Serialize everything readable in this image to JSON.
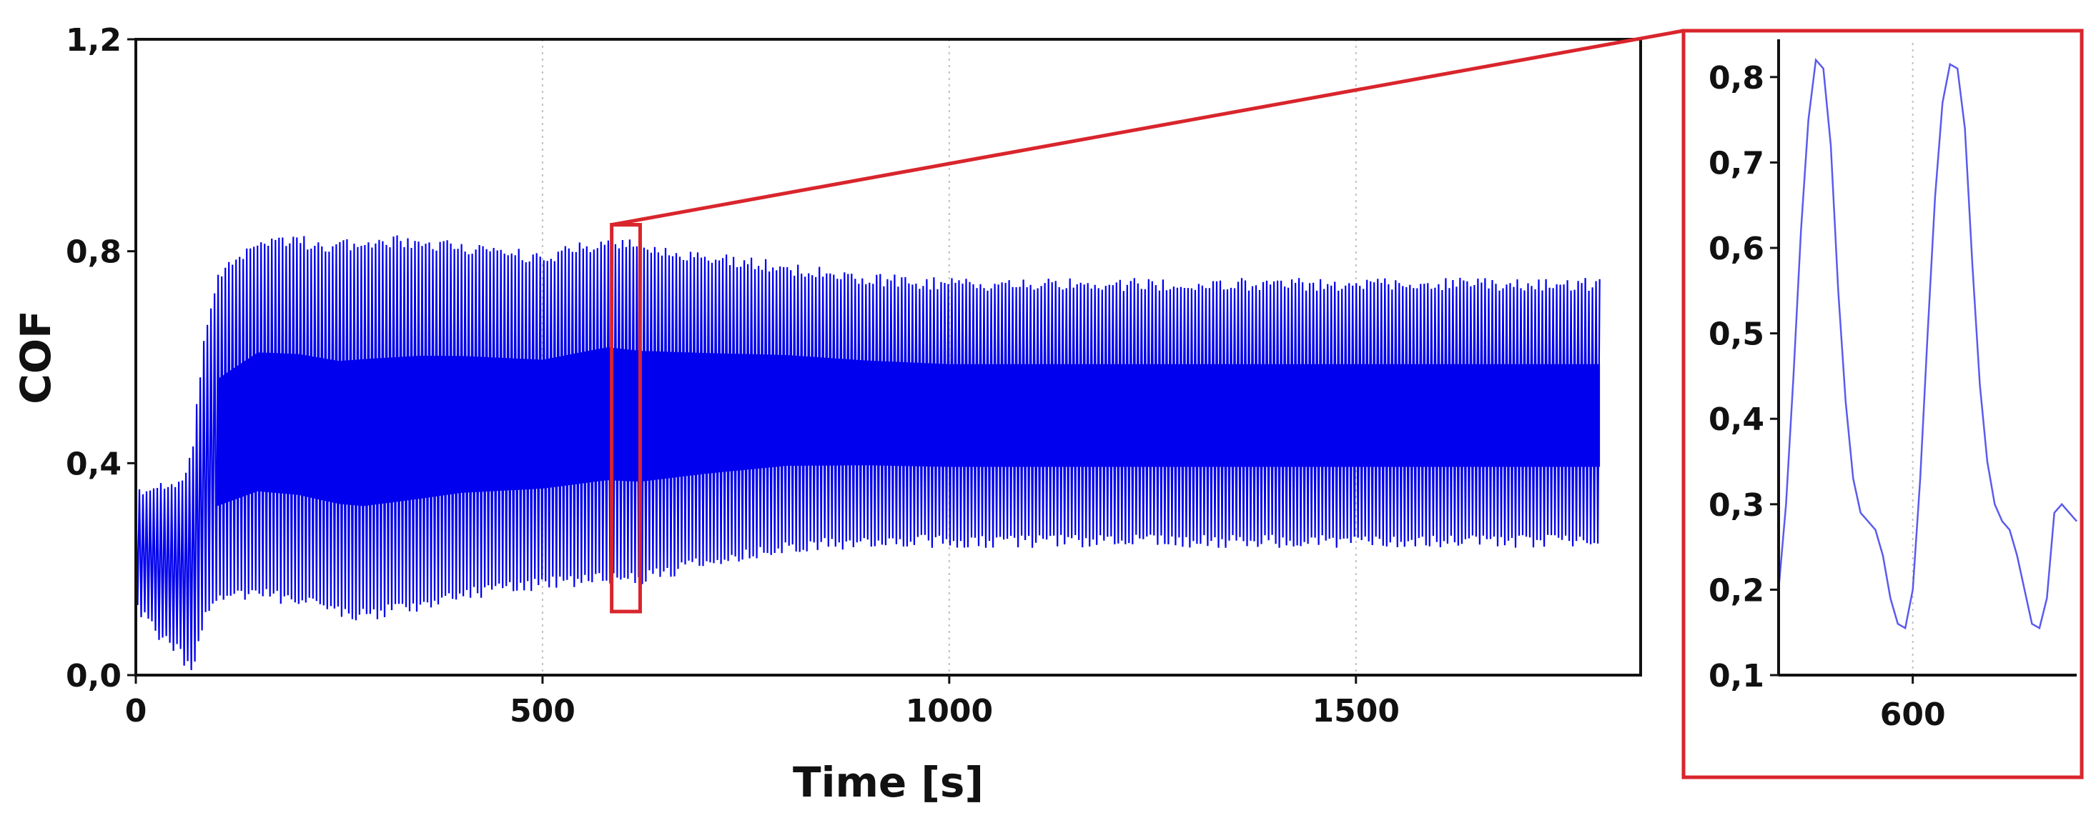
{
  "colors": {
    "series": "#0000ee",
    "zoom_series": "#5a5aee",
    "highlight": "#d9252c",
    "axis": "#111111",
    "grid": "#c0c0c0"
  },
  "chart_data": [
    {
      "type": "line",
      "title": "",
      "xlabel": "Time [s]",
      "ylabel": "COF",
      "xlim": [
        0,
        1850
      ],
      "ylim": [
        0.0,
        1.2
      ],
      "x_ticks": [
        0,
        500,
        1000,
        1500
      ],
      "x_tick_labels": [
        "0",
        "500",
        "1000",
        "1500"
      ],
      "y_ticks": [
        0.0,
        0.4,
        0.8,
        1.2
      ],
      "y_tick_labels": [
        "0,0",
        "0,4",
        "0,8",
        "1,2"
      ],
      "grid": "vertical dotted",
      "series": [
        {
          "name": "COF",
          "style": "dense oscillation between lower and upper envelope",
          "envelope_time": [
            0,
            25,
            50,
            62,
            70,
            85,
            100,
            150,
            200,
            250,
            280,
            350,
            400,
            500,
            580,
            620,
            700,
            800,
            900,
            1000,
            1200,
            1400,
            1600,
            1800
          ],
          "upper_envelope": [
            0.36,
            0.37,
            0.38,
            0.4,
            0.45,
            0.65,
            0.76,
            0.83,
            0.83,
            0.82,
            0.83,
            0.83,
            0.82,
            0.8,
            0.83,
            0.82,
            0.8,
            0.78,
            0.76,
            0.75,
            0.75,
            0.75,
            0.75,
            0.75
          ],
          "lower_envelope": [
            0.12,
            0.07,
            0.04,
            0.01,
            0.0,
            0.1,
            0.13,
            0.14,
            0.13,
            0.11,
            0.1,
            0.12,
            0.14,
            0.16,
            0.17,
            0.17,
            0.2,
            0.23,
            0.24,
            0.24,
            0.24,
            0.24,
            0.24,
            0.24
          ]
        }
      ],
      "highlight_region": {
        "x_range": [
          585,
          620
        ],
        "y_range": [
          0.12,
          0.85
        ]
      }
    },
    {
      "type": "line",
      "title": "",
      "xlabel": "",
      "ylabel": "",
      "xlim": [
        582,
        622
      ],
      "ylim": [
        0.1,
        0.84
      ],
      "x_ticks": [
        600
      ],
      "x_tick_labels": [
        "600"
      ],
      "y_ticks": [
        0.1,
        0.2,
        0.3,
        0.4,
        0.5,
        0.6,
        0.7,
        0.8
      ],
      "y_tick_labels": [
        "0,1",
        "0,2",
        "0,3",
        "0,4",
        "0,5",
        "0,6",
        "0,7",
        "0,8"
      ],
      "grid": "vertical dotted",
      "series": [
        {
          "name": "COF (zoom)",
          "x": [
            582,
            583,
            584,
            585,
            586,
            587,
            588,
            589,
            590,
            591,
            592,
            593,
            594,
            595,
            596,
            597,
            598,
            599,
            600,
            601,
            602,
            603,
            604,
            605,
            606,
            607,
            608,
            609,
            610,
            611,
            612,
            613,
            614,
            615,
            616,
            617,
            618,
            619,
            620,
            621,
            622
          ],
          "y": [
            0.2,
            0.3,
            0.45,
            0.62,
            0.75,
            0.82,
            0.81,
            0.72,
            0.55,
            0.42,
            0.33,
            0.29,
            0.28,
            0.27,
            0.24,
            0.19,
            0.16,
            0.155,
            0.2,
            0.33,
            0.5,
            0.66,
            0.77,
            0.815,
            0.81,
            0.74,
            0.58,
            0.44,
            0.35,
            0.3,
            0.28,
            0.27,
            0.24,
            0.2,
            0.16,
            0.155,
            0.19,
            0.29,
            0.3,
            0.29,
            0.28
          ]
        }
      ]
    }
  ]
}
